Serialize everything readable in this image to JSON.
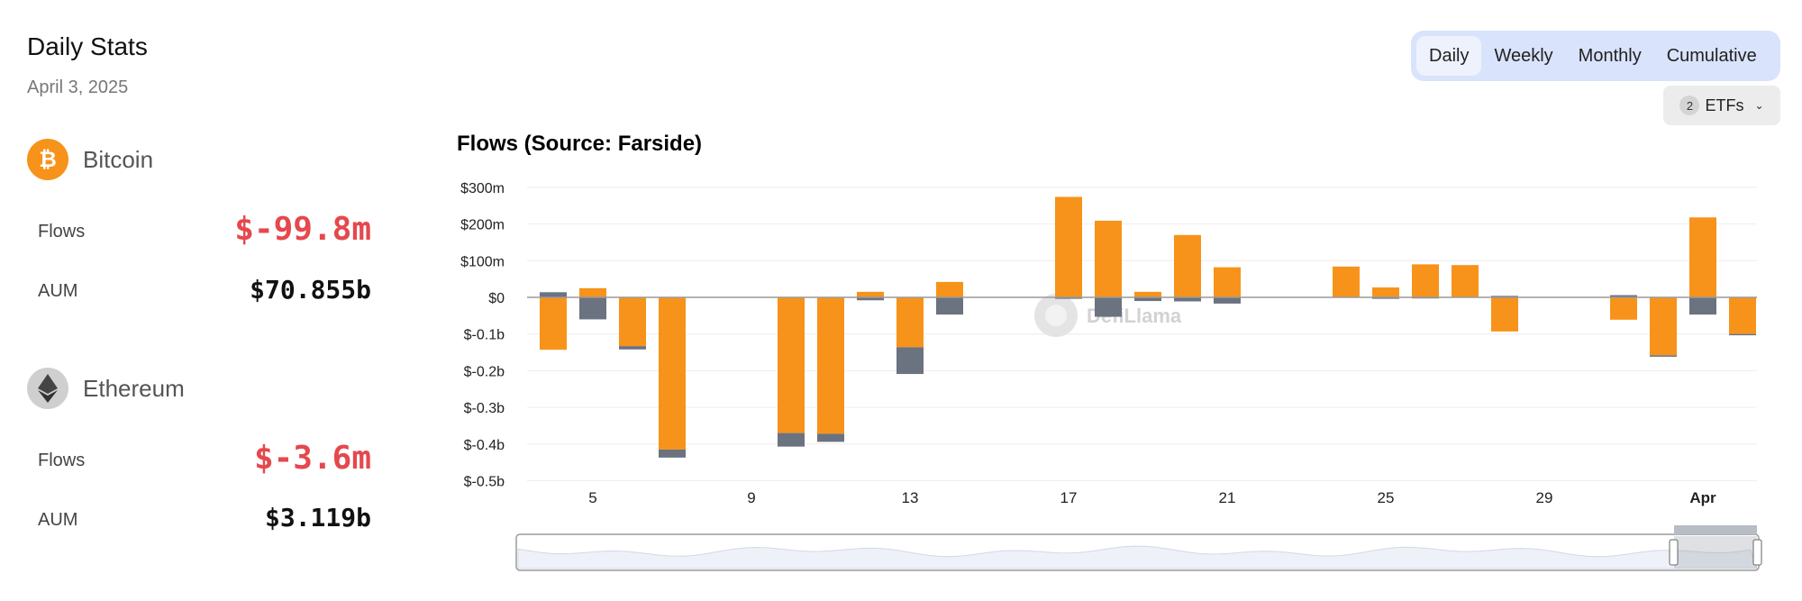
{
  "header": {
    "title": "Daily Stats",
    "date": "April 3, 2025"
  },
  "assets": [
    {
      "name": "Bitcoin",
      "icon": "bitcoin-icon",
      "color": "#f7931a",
      "flows_label": "Flows",
      "flows_value": "$-99.8m",
      "aum_label": "AUM",
      "aum_value": "$70.855b"
    },
    {
      "name": "Ethereum",
      "icon": "ethereum-icon",
      "color": "#c8c8c8",
      "flows_label": "Flows",
      "flows_value": "$-3.6m",
      "aum_label": "AUM",
      "aum_value": "$3.119b"
    }
  ],
  "period_tabs": [
    "Daily",
    "Weekly",
    "Monthly",
    "Cumulative"
  ],
  "active_tab": "Daily",
  "etf_filter": {
    "count": "2",
    "label": "ETFs"
  },
  "watermark": "DefiLlama",
  "colors": {
    "bitcoin": "#f7931a",
    "ethereum": "#6b7280",
    "negative": "#e5484d",
    "toggle_bg": "#d9e3fb"
  },
  "chart_data": {
    "type": "bar",
    "stacked": true,
    "title": "Flows (Source: Farside)",
    "ylim": [
      -500,
      300
    ],
    "yticks": [
      {
        "value": 300,
        "label": "$300m"
      },
      {
        "value": 200,
        "label": "$200m"
      },
      {
        "value": 100,
        "label": "$100m"
      },
      {
        "value": 0,
        "label": "$0"
      },
      {
        "value": -100,
        "label": "$-0.1b"
      },
      {
        "value": -200,
        "label": "$-0.2b"
      },
      {
        "value": -300,
        "label": "$-0.3b"
      },
      {
        "value": -400,
        "label": "$-0.4b"
      },
      {
        "value": -500,
        "label": "$-0.5b"
      }
    ],
    "xticks": [
      {
        "day": 5,
        "label": "5"
      },
      {
        "day": 9,
        "label": "9"
      },
      {
        "day": 13,
        "label": "13"
      },
      {
        "day": 17,
        "label": "17"
      },
      {
        "day": 21,
        "label": "21"
      },
      {
        "day": 25,
        "label": "25"
      },
      {
        "day": 29,
        "label": "29"
      },
      {
        "day": 33,
        "label": "Apr"
      }
    ],
    "days": [
      4,
      5,
      6,
      7,
      10,
      11,
      12,
      13,
      14,
      17,
      18,
      19,
      20,
      21,
      24,
      25,
      26,
      27,
      28,
      31,
      32,
      33,
      34
    ],
    "series": [
      {
        "name": "Bitcoin",
        "color": "#f7931a",
        "values": [
          -143,
          25,
          -133,
          -415,
          -370,
          -372,
          15,
          -136,
          42,
          274,
          209,
          15,
          170,
          82,
          84,
          27,
          90,
          88,
          -93,
          -61,
          -158,
          218,
          -99.8
        ]
      },
      {
        "name": "Ethereum",
        "color": "#6b7280",
        "values": [
          14,
          -60,
          -9,
          -22,
          -37,
          -22,
          -8,
          -73,
          -47,
          -4,
          -53,
          -10,
          -11,
          -17,
          0,
          -4,
          -3,
          0,
          4,
          6,
          -4,
          -47,
          -3.6
        ]
      }
    ]
  }
}
